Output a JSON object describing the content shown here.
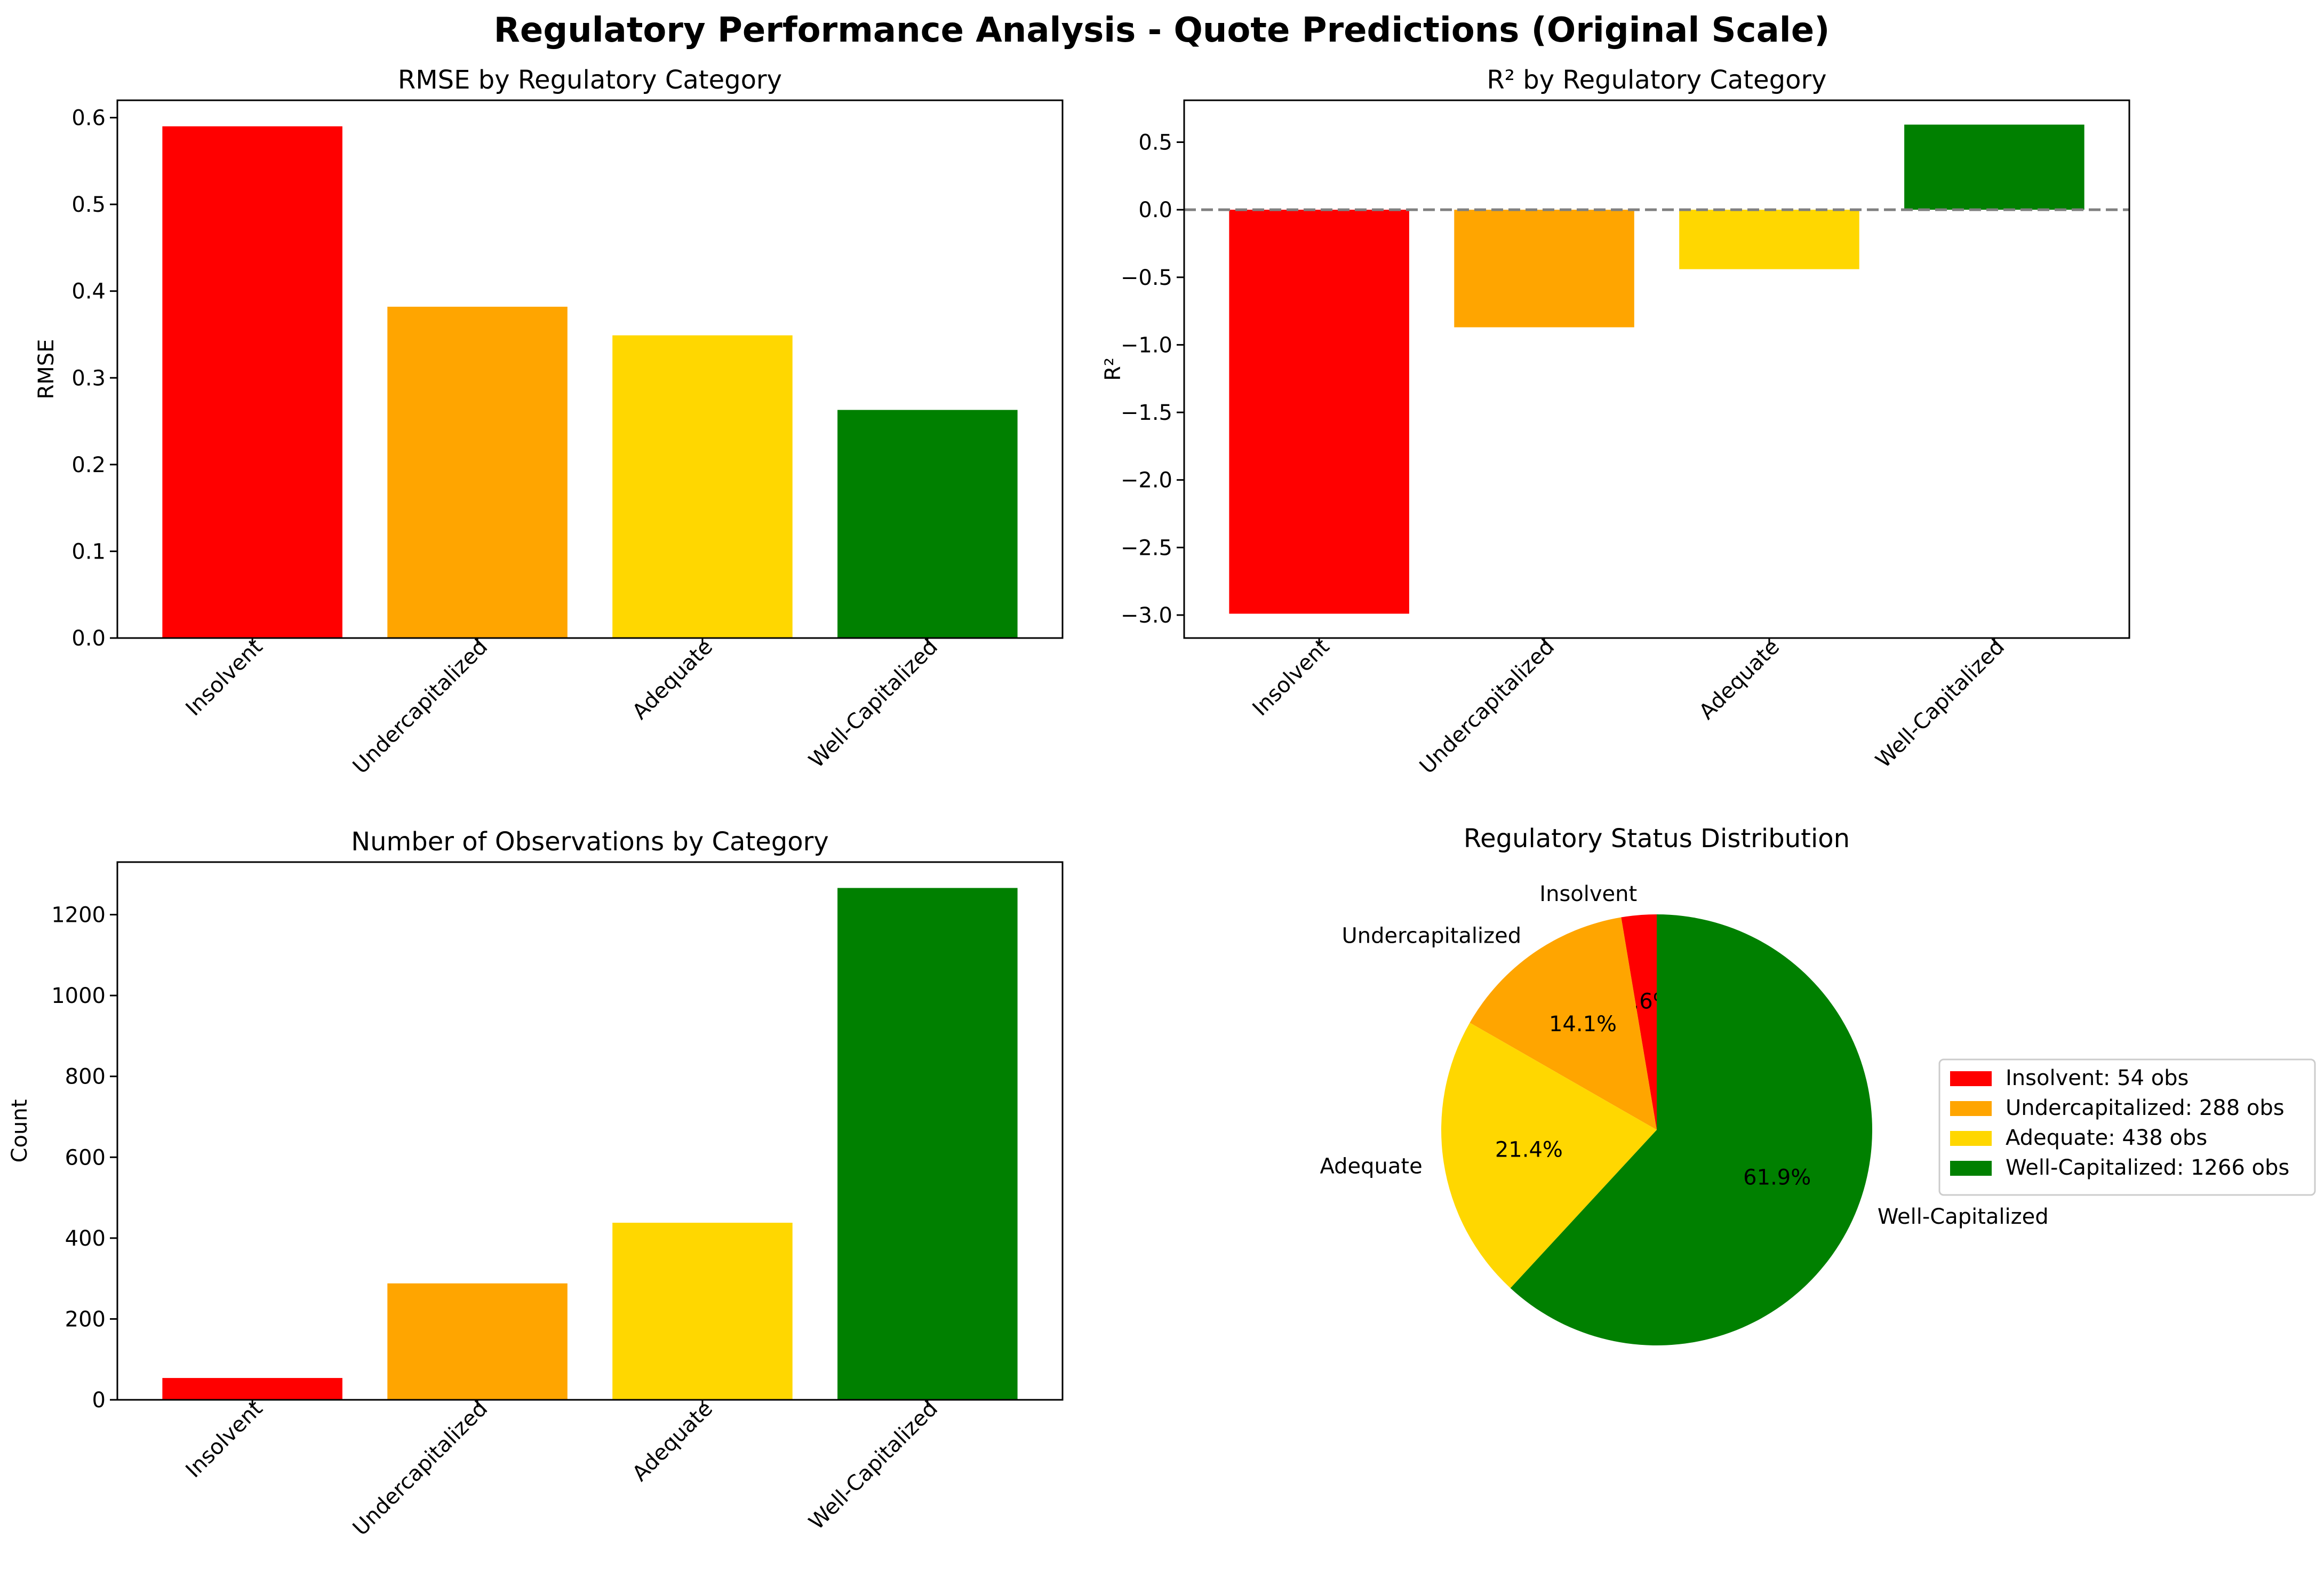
{
  "figure": {
    "title": "Regulatory Performance Analysis - Quote Predictions (Original Scale)"
  },
  "chart_data": [
    {
      "id": "rmse",
      "type": "bar",
      "title": "RMSE by Regulatory Category",
      "xlabel": "",
      "ylabel": "RMSE",
      "categories": [
        "Insolvent",
        "Undercapitalized",
        "Adequate",
        "Well-Capitalized"
      ],
      "values": [
        0.59,
        0.382,
        0.349,
        0.263
      ],
      "colors": [
        "#ff0000",
        "#ffa500",
        "#ffd700",
        "#008000"
      ],
      "ylim": [
        0,
        0.62
      ],
      "yticks": [
        0.0,
        0.1,
        0.2,
        0.3,
        0.4,
        0.5,
        0.6
      ],
      "ytick_labels": [
        "0.0",
        "0.1",
        "0.2",
        "0.3",
        "0.4",
        "0.5",
        "0.6"
      ],
      "grid": false
    },
    {
      "id": "r2",
      "type": "bar",
      "title": "R² by Regulatory Category",
      "xlabel": "",
      "ylabel": "R²",
      "categories": [
        "Insolvent",
        "Undercapitalized",
        "Adequate",
        "Well-Capitalized"
      ],
      "values": [
        -2.99,
        -0.87,
        -0.44,
        0.63
      ],
      "colors": [
        "#ff0000",
        "#ffa500",
        "#ffd700",
        "#008000"
      ],
      "ylim": [
        -3.17,
        0.81
      ],
      "yticks": [
        0.5,
        0.0,
        -0.5,
        -1.0,
        -1.5,
        -2.0,
        -2.5,
        -3.0
      ],
      "ytick_labels": [
        "0.5",
        "0.0",
        "−0.5",
        "−1.0",
        "−1.5",
        "−2.0",
        "−2.5",
        "−3.0"
      ],
      "reference_line": 0,
      "grid": false
    },
    {
      "id": "count",
      "type": "bar",
      "title": "Number of Observations by Category",
      "xlabel": "",
      "ylabel": "Count",
      "categories": [
        "Insolvent",
        "Undercapitalized",
        "Adequate",
        "Well-Capitalized"
      ],
      "values": [
        54,
        288,
        438,
        1266
      ],
      "colors": [
        "#ff0000",
        "#ffa500",
        "#ffd700",
        "#008000"
      ],
      "ylim": [
        0,
        1330
      ],
      "yticks": [
        0,
        200,
        400,
        600,
        800,
        1000,
        1200
      ],
      "ytick_labels": [
        "0",
        "200",
        "400",
        "600",
        "800",
        "1000",
        "1200"
      ],
      "grid": false
    },
    {
      "id": "distribution",
      "type": "pie",
      "title": "Regulatory Status Distribution",
      "labels": [
        "Insolvent",
        "Undercapitalized",
        "Adequate",
        "Well-Capitalized"
      ],
      "values": [
        54,
        288,
        438,
        1266
      ],
      "percent_labels": [
        "2.6%",
        "14.1%",
        "21.4%",
        "61.9%"
      ],
      "colors": [
        "#ff0000",
        "#ffa500",
        "#ffd700",
        "#008000"
      ],
      "start_angle_deg": 90,
      "direction": "counterclockwise",
      "legend": {
        "placement": "right",
        "entries": [
          "Insolvent: 54 obs",
          "Undercapitalized: 288 obs",
          "Adequate: 438 obs",
          "Well-Capitalized: 1266 obs"
        ]
      }
    }
  ]
}
